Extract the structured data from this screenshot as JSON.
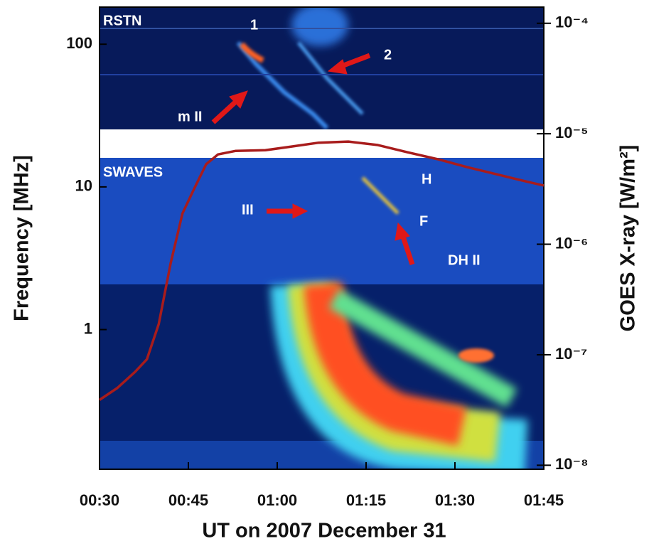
{
  "chart_data": {
    "type": "line",
    "x_label": "UT on 2007 December 31",
    "y_label": "Frequency [MHz]",
    "y2_label": "GOES X-ray [W/m²]",
    "xlim": [
      30,
      105
    ],
    "xticks": [
      {
        "value": 30,
        "label": "00:30"
      },
      {
        "value": 45,
        "label": "00:45"
      },
      {
        "value": 60,
        "label": "01:00"
      },
      {
        "value": 75,
        "label": "01:15"
      },
      {
        "value": 90,
        "label": "01:30"
      },
      {
        "value": 105,
        "label": "01:45"
      }
    ],
    "ylim": [
      0.105,
      182
    ],
    "ylog": true,
    "yticks": [
      1,
      10,
      100
    ],
    "y2lim": [
      9.2e-09,
      0.00014
    ],
    "y2log": true,
    "y2ticks": [
      {
        "value": 1e-08,
        "label": "10⁻⁸"
      },
      {
        "value": 1e-07,
        "label": "10⁻⁷"
      },
      {
        "value": 1e-06,
        "label": "10⁻⁶"
      },
      {
        "value": 1e-05,
        "label": "10⁻⁵"
      },
      {
        "value": 0.0001,
        "label": "10⁻⁴"
      }
    ],
    "x": [
      30,
      33,
      36,
      38,
      40,
      42,
      44,
      46,
      48,
      50,
      53,
      58,
      62,
      67,
      72,
      77,
      82,
      87,
      92,
      97,
      102,
      105
    ],
    "series": [
      {
        "color": "#a81c1c",
        "axis": "y2",
        "values": [
          3.9e-08,
          5e-08,
          7e-08,
          9.1e-08,
          1.9e-07,
          6.7e-07,
          1.9e-06,
          3.2e-06,
          5.3e-06,
          6.5e-06,
          7e-06,
          7.1e-06,
          7.6e-06,
          8.3e-06,
          8.5e-06,
          7.9e-06,
          6.8e-06,
          5.9e-06,
          5e-06,
          4.3e-06,
          3.7e-06,
          3.4e-06
        ]
      }
    ],
    "annotations": [
      "RSTN",
      "SWAVES",
      "1",
      "2",
      "m II",
      "III",
      "H",
      "F",
      "DH II"
    ]
  }
}
